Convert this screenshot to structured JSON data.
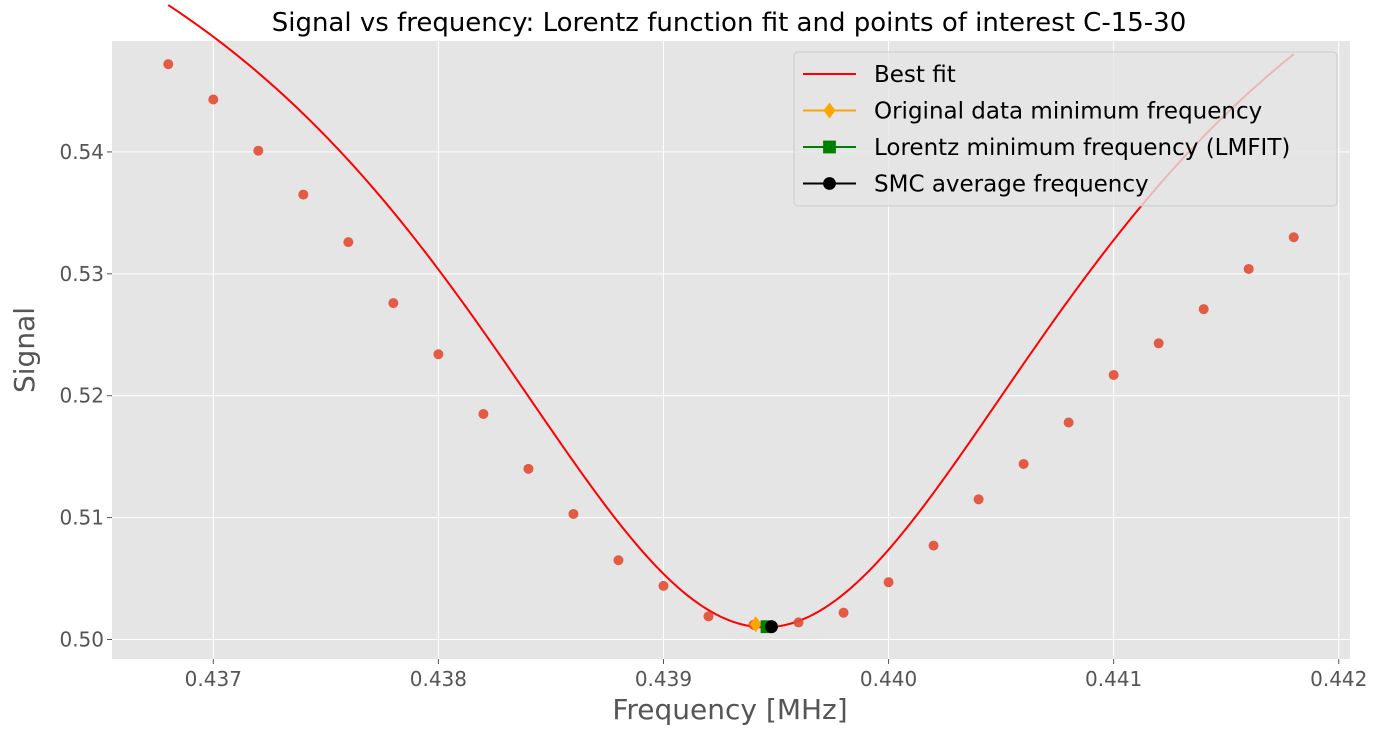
{
  "chart_data": {
    "type": "scatter",
    "title": "Signal vs frequency: Lorentz function fit and points of interest C-15-30",
    "xlabel": "Frequency [MHz]",
    "ylabel": "Signal",
    "xlim": [
      0.43655,
      0.44205
    ],
    "ylim": [
      0.4984,
      0.5491
    ],
    "xticks": [
      0.437,
      0.438,
      0.439,
      0.44,
      0.441,
      0.442
    ],
    "xtick_labels": [
      "0.437",
      "0.438",
      "0.439",
      "0.440",
      "0.441",
      "0.442"
    ],
    "yticks": [
      0.5,
      0.51,
      0.52,
      0.53,
      0.54
    ],
    "ytick_labels": [
      "0.50",
      "0.51",
      "0.52",
      "0.53",
      "0.54"
    ],
    "grid": true,
    "legend_position": "top-right",
    "colors": {
      "background": "#e5e5e5",
      "grid": "#ffffff",
      "data_points": "#e24a33",
      "fit_line": "#ff0000",
      "original_min": "#ffa500",
      "lorentz_min": "#008000",
      "smc_avg": "#000000"
    },
    "data_points": {
      "x": [
        0.4368,
        0.437,
        0.4372,
        0.4374,
        0.4376,
        0.4378,
        0.438,
        0.4382,
        0.4384,
        0.4386,
        0.4388,
        0.439,
        0.4392,
        0.4394,
        0.4396,
        0.4398,
        0.44,
        0.4402,
        0.4404,
        0.4406,
        0.4408,
        0.441,
        0.4412,
        0.4414,
        0.4416,
        0.4418
      ],
      "y": [
        0.5472,
        0.5443,
        0.5401,
        0.5365,
        0.5326,
        0.5276,
        0.5234,
        0.5185,
        0.514,
        0.5103,
        0.5065,
        0.5044,
        0.5019,
        0.5012,
        0.5014,
        0.5022,
        0.5047,
        0.5077,
        0.5115,
        0.5144,
        0.5178,
        0.5217,
        0.5243,
        0.5271,
        0.5304,
        0.533
      ]
    },
    "fit": {
      "name": "Best fit",
      "x0": 0.43945,
      "fwhm": 0.0036,
      "baseline": 0.5756,
      "depth": 0.0746,
      "x_range": [
        0.4368,
        0.4418
      ]
    },
    "markers": [
      {
        "name": "Original data minimum frequency",
        "shape": "diamond",
        "color": "#ffa500",
        "x": 0.43941,
        "y": 0.50125
      },
      {
        "name": "Lorentz minimum frequency (LMFIT)",
        "shape": "square",
        "color": "#008000",
        "x": 0.43946,
        "y": 0.50105
      },
      {
        "name": "SMC average frequency",
        "shape": "circle",
        "color": "#000000",
        "x": 0.43948,
        "y": 0.50105
      }
    ],
    "legend": [
      {
        "label": "Best fit",
        "marker": "none",
        "color": "#ff0000"
      },
      {
        "label": "Original data minimum frequency",
        "marker": "diamond",
        "color": "#ffa500"
      },
      {
        "label": "Lorentz minimum frequency (LMFIT)",
        "marker": "square",
        "color": "#008000"
      },
      {
        "label": "SMC average frequency",
        "marker": "circle",
        "color": "#000000"
      }
    ]
  }
}
